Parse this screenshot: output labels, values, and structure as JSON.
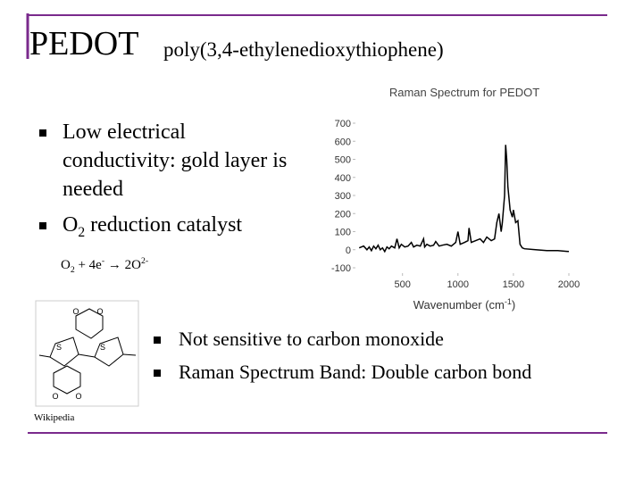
{
  "title": "PEDOT",
  "subtitle": "poly(3,4-ethylenedioxythiophene)",
  "left_bullets": [
    [
      {
        "text": "Low electrical conductivity: gold layer is needed"
      }
    ],
    [
      {
        "text": "O"
      },
      {
        "sub": "2"
      },
      {
        "text": " reduction catalyst"
      }
    ]
  ],
  "equation": [
    {
      "text": "O"
    },
    {
      "sub": "2"
    },
    {
      "text": " + 4e"
    },
    {
      "sup": "-"
    },
    {
      "text": " → 2O"
    },
    {
      "sup": "2-"
    }
  ],
  "right_bullets": [
    "Not sensitive to carbon monoxide",
    "Raman Spectrum Band: Double carbon bond"
  ],
  "molecule": {
    "atoms": [
      "O",
      "O",
      "O",
      "O",
      "S",
      "S"
    ],
    "caption": "Wikipedia"
  },
  "chart": {
    "type": "line",
    "title": "Raman Spectrum for PEDOT",
    "x_label": [
      {
        "text": "Wavenumber (cm"
      },
      {
        "sup": "-1"
      },
      {
        "text": ")"
      }
    ],
    "color": "#000000",
    "xlim": [
      100,
      2000
    ],
    "ylim": [
      -100,
      700
    ],
    "xticks": [
      500,
      1000,
      1500,
      2000
    ],
    "yticks": [
      -100,
      0,
      100,
      200,
      300,
      400,
      500,
      600,
      700
    ],
    "x": [
      110,
      150,
      180,
      200,
      220,
      240,
      260,
      280,
      300,
      320,
      340,
      360,
      380,
      400,
      430,
      450,
      470,
      490,
      520,
      550,
      580,
      600,
      630,
      660,
      690,
      700,
      720,
      750,
      780,
      800,
      830,
      860,
      900,
      940,
      980,
      1000,
      1020,
      1060,
      1090,
      1100,
      1120,
      1160,
      1200,
      1230,
      1260,
      1300,
      1330,
      1350,
      1370,
      1390,
      1400,
      1420,
      1430,
      1440,
      1450,
      1470,
      1490,
      1500,
      1520,
      1540,
      1560,
      1580,
      1600,
      1700,
      1800,
      1900,
      2000
    ],
    "values": [
      10,
      20,
      0,
      15,
      -5,
      20,
      5,
      25,
      0,
      10,
      -10,
      15,
      5,
      20,
      10,
      60,
      10,
      30,
      15,
      20,
      40,
      15,
      25,
      20,
      60,
      15,
      30,
      20,
      25,
      45,
      20,
      25,
      30,
      20,
      40,
      100,
      30,
      40,
      50,
      120,
      40,
      50,
      60,
      40,
      70,
      50,
      60,
      150,
      200,
      100,
      150,
      300,
      580,
      500,
      350,
      220,
      180,
      220,
      150,
      160,
      30,
      10,
      5,
      0,
      -5,
      -5,
      -10
    ]
  }
}
